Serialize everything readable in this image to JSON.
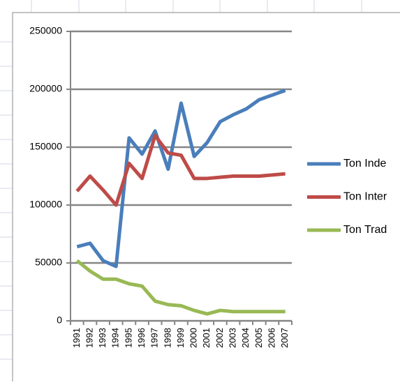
{
  "chart_data": {
    "type": "line",
    "categories": [
      "1991",
      "1992",
      "1993",
      "1994",
      "1995",
      "1996",
      "1997",
      "1998",
      "1999",
      "2000",
      "2001",
      "2002",
      "2003",
      "2004",
      "2005",
      "2006",
      "2007"
    ],
    "series": [
      {
        "name": "Ton Inde",
        "color": "#4a7ebb",
        "values": [
          64000,
          67000,
          52000,
          47000,
          158000,
          144000,
          164000,
          131000,
          188000,
          142000,
          154000,
          172000,
          178000,
          183000,
          191000,
          195000,
          199000
        ]
      },
      {
        "name": "Ton Inter",
        "color": "#be4b48",
        "values": [
          112000,
          125000,
          113000,
          100000,
          136000,
          123000,
          160000,
          145000,
          143000,
          123000,
          123000,
          124000,
          125000,
          125000,
          125000,
          126000,
          127000
        ]
      },
      {
        "name": "Ton Trad",
        "color": "#98b954",
        "values": [
          52000,
          43000,
          36000,
          36000,
          32000,
          30000,
          17000,
          14000,
          13000,
          9000,
          6000,
          9000,
          8000,
          8000,
          8000,
          8000,
          8000
        ]
      }
    ],
    "ylim": [
      0,
      250000
    ],
    "yticks": [
      0,
      50000,
      100000,
      150000,
      200000,
      250000
    ],
    "grid": true,
    "legend": "right"
  }
}
